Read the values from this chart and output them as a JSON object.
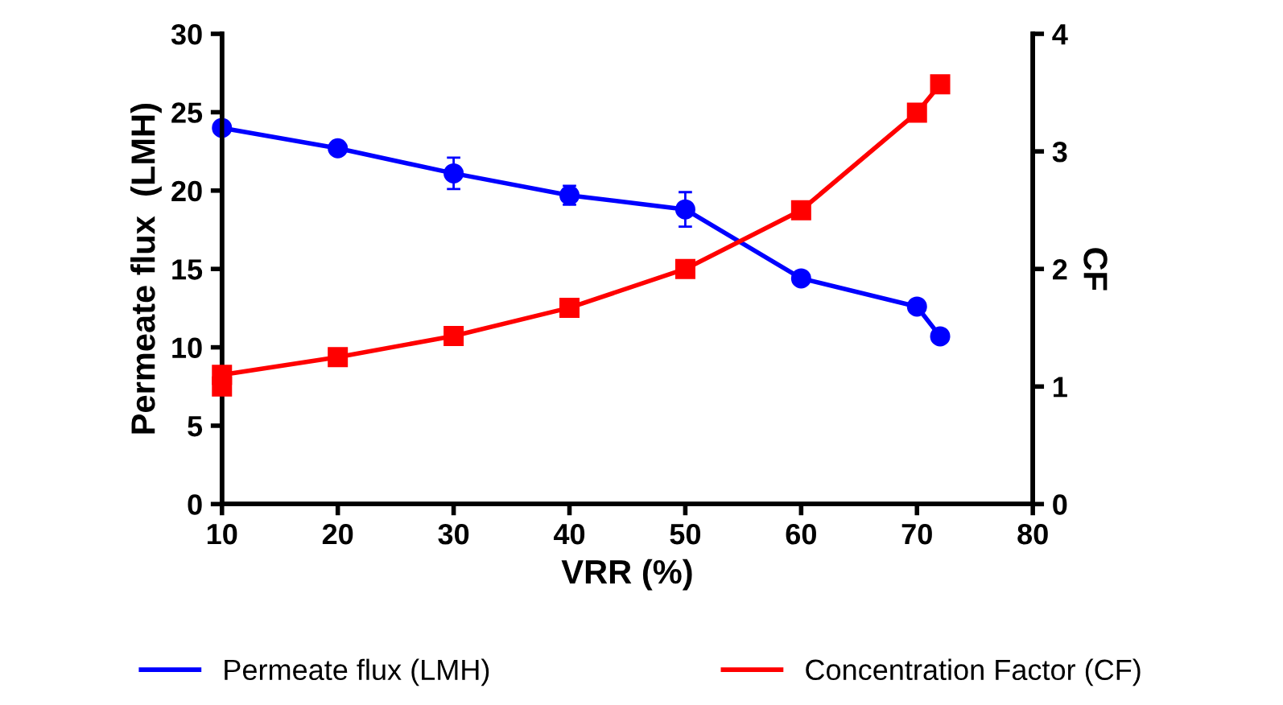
{
  "chart_data": {
    "type": "line",
    "xlabel": "VRR (%)",
    "ylabel": "Permeate flux  (LMH)",
    "y2label": "CF",
    "xlim": [
      10,
      80
    ],
    "xticks": [
      10,
      20,
      30,
      40,
      50,
      60,
      70,
      80
    ],
    "ylim": [
      0,
      30
    ],
    "yticks": [
      0,
      5,
      10,
      15,
      20,
      25,
      30
    ],
    "y2lim": [
      0,
      4
    ],
    "y2ticks": [
      0,
      1,
      2,
      3,
      4
    ],
    "series": [
      {
        "name": "Permeate flux (LMH)",
        "color": "#0000ff",
        "marker": "circle",
        "x": [
          10,
          20,
          30,
          40,
          50,
          60,
          70,
          72
        ],
        "values": [
          24.0,
          22.7,
          21.1,
          19.7,
          18.8,
          14.4,
          12.6,
          10.7
        ],
        "errors": [
          null,
          null,
          1.0,
          0.6,
          1.1,
          null,
          null,
          null
        ]
      },
      {
        "name": "Concentration Factor (CF)",
        "color": "#ff0000",
        "marker": "square",
        "axis": "y2",
        "x": [
          10,
          10,
          20,
          30,
          40,
          50,
          60,
          70,
          72
        ],
        "values": [
          1.0,
          1.1,
          1.25,
          1.43,
          1.67,
          2.0,
          2.5,
          3.33,
          3.57
        ]
      }
    ],
    "legend": "bottom",
    "grid": false,
    "line_style": "solid"
  }
}
